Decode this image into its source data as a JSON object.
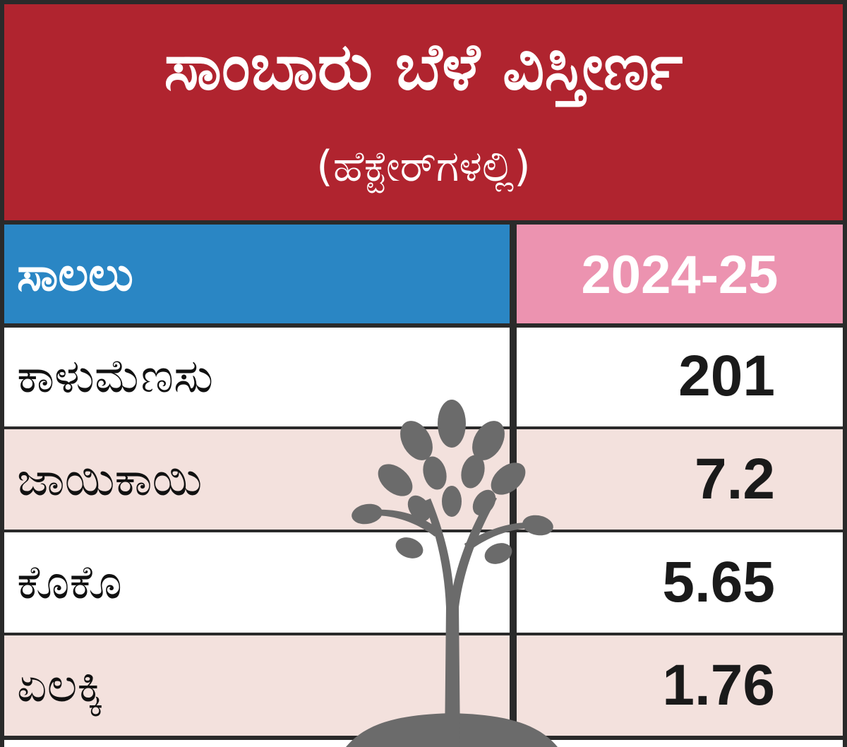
{
  "header": {
    "title": "ಸಾಂಬಾರು ಬೆಳೆ ವಿಸ್ತೀರ್ಣ",
    "subtitle": "(ಹೆಕ್ಟೇರ್‌ಗಳಲ್ಲಿ)"
  },
  "table": {
    "col_left_header": "ಸಾಲಲು",
    "col_right_header": "2024-25"
  },
  "colors": {
    "header_bg": "#b0242f",
    "left_header_bg": "#2a86c4",
    "right_header_bg": "#ec93b0",
    "row_white": "#ffffff",
    "row_pink": "#f3e1dd",
    "tree": "#6b6b6b"
  },
  "chart_data": {
    "type": "table",
    "title": "ಸಾಂಬಾರು ಬೆಳೆ ವಿಸ್ತೀರ್ಣ",
    "subtitle": "(ಹೆಕ್ಟೇರ್‌ಗಳಲ್ಲಿ)",
    "columns": [
      "ಸಾಲಲು",
      "2024-25"
    ],
    "rows": [
      {
        "label": "ಕಾಳುಮೆಣಸು",
        "value": "201"
      },
      {
        "label": "ಜಾಯಿಕಾಯಿ",
        "value": "7.2"
      },
      {
        "label": "ಕೊಕೊ",
        "value": "5.65"
      },
      {
        "label": "ಏಲಕ್ಕಿ",
        "value": "1.76"
      }
    ]
  }
}
